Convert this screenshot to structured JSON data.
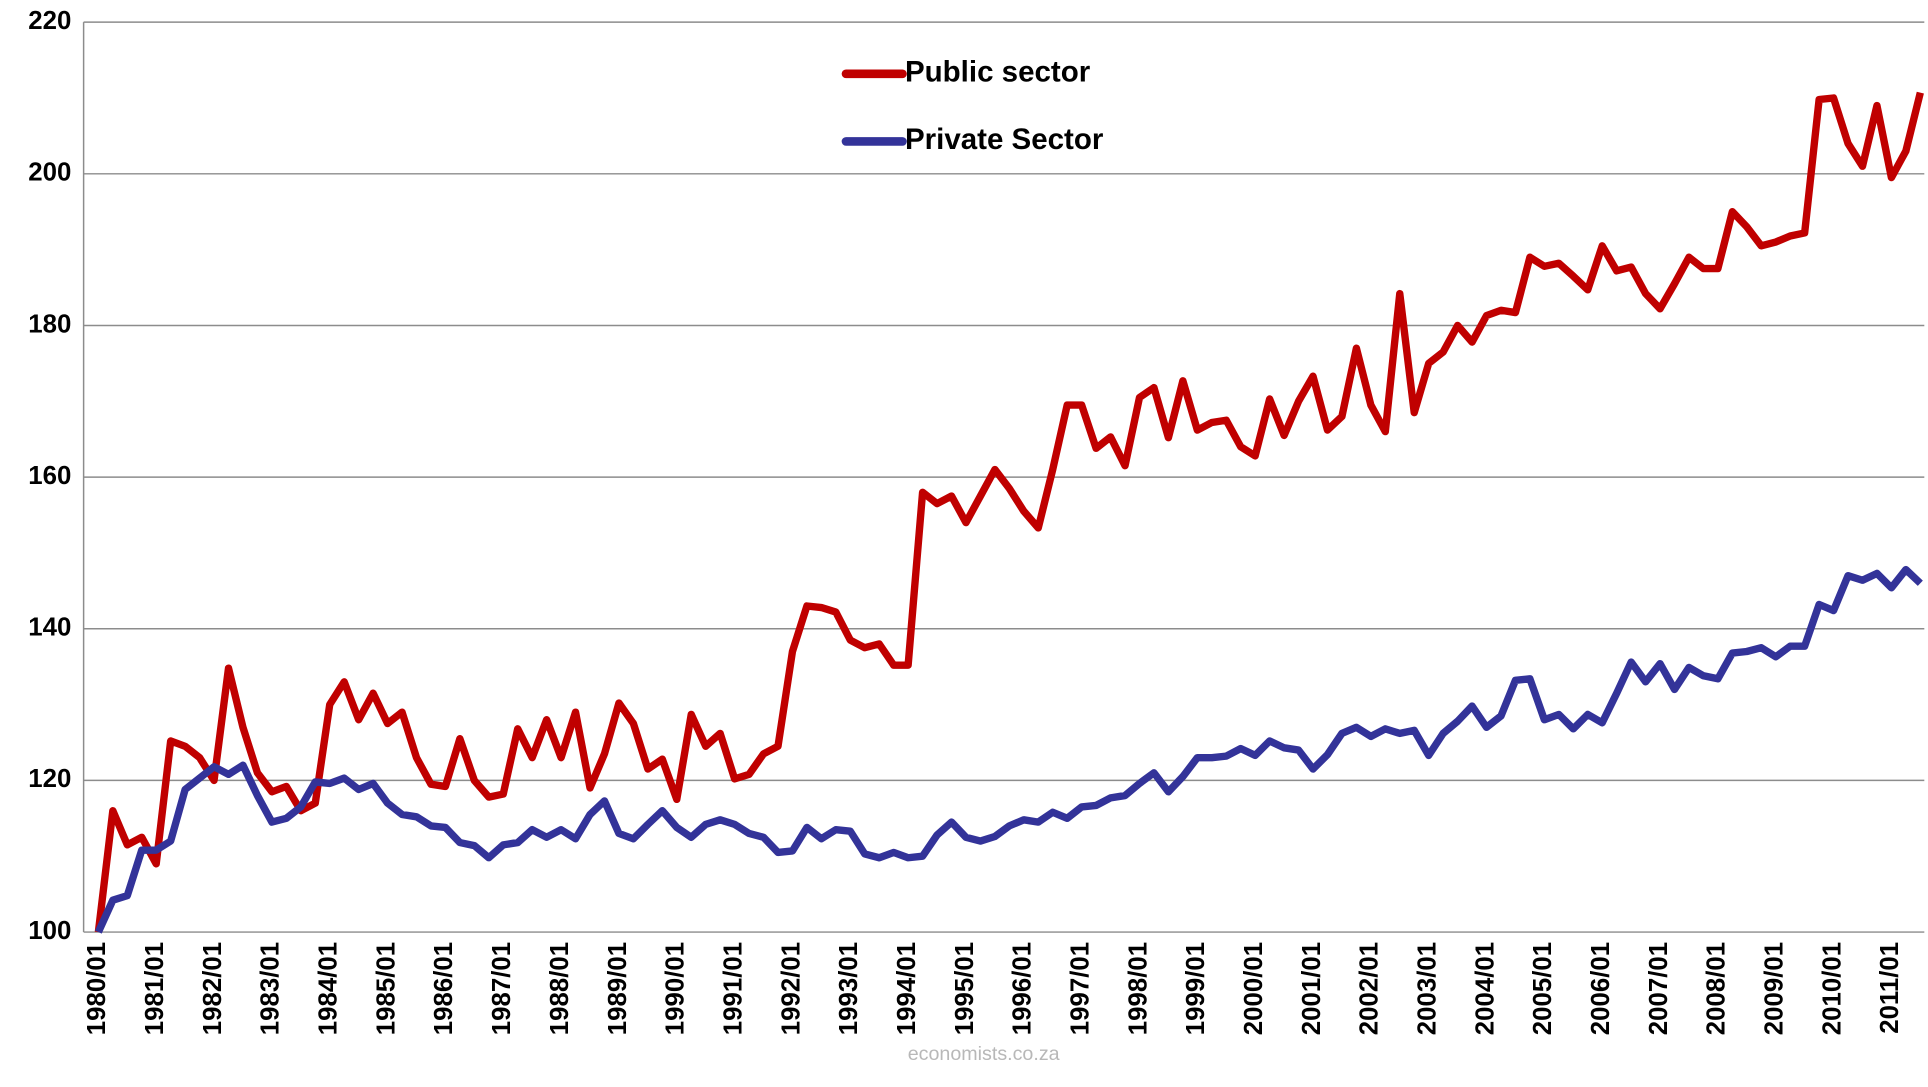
{
  "chart_data": {
    "type": "line",
    "categories": [
      "1980/01",
      null,
      null,
      null,
      "1981/01",
      null,
      null,
      null,
      "1982/01",
      null,
      null,
      null,
      "1983/01",
      null,
      null,
      null,
      "1984/01",
      null,
      null,
      null,
      "1985/01",
      null,
      null,
      null,
      "1986/01",
      null,
      null,
      null,
      "1987/01",
      null,
      null,
      null,
      "1988/01",
      null,
      null,
      null,
      "1989/01",
      null,
      null,
      null,
      "1990/01",
      null,
      null,
      null,
      "1991/01",
      null,
      null,
      null,
      "1992/01",
      null,
      null,
      null,
      "1993/01",
      null,
      null,
      null,
      "1994/01",
      null,
      null,
      null,
      "1995/01",
      null,
      null,
      null,
      "1996/01",
      null,
      null,
      null,
      "1997/01",
      null,
      null,
      null,
      "1998/01",
      null,
      null,
      null,
      "1999/01",
      null,
      null,
      null,
      "2000/01",
      null,
      null,
      null,
      "2001/01",
      null,
      null,
      null,
      "2002/01",
      null,
      null,
      null,
      "2003/01",
      null,
      null,
      null,
      "2004/01",
      null,
      null,
      null,
      "2005/01",
      null,
      null,
      null,
      "2006/01",
      null,
      null,
      null,
      "2007/01",
      null,
      null,
      null,
      "2008/01",
      null,
      null,
      null,
      "2009/01",
      null,
      null,
      null,
      "2010/01",
      null,
      null,
      null,
      "2011/01",
      null,
      null
    ],
    "series": [
      {
        "name": "Public sector",
        "color": "#c00000",
        "values": [
          100,
          116,
          111.5,
          112.5,
          109,
          125.2,
          124.5,
          123,
          120,
          134.8,
          127,
          121,
          118.5,
          119.2,
          116,
          117,
          130,
          133,
          128,
          131.5,
          127.5,
          129,
          123,
          119.5,
          119.2,
          125.5,
          120,
          117.8,
          118.2,
          126.8,
          123,
          128,
          123,
          129,
          119,
          123.5,
          130.2,
          127.5,
          121.5,
          122.8,
          117.5,
          128.7,
          124.5,
          126.2,
          120.2,
          120.8,
          123.5,
          124.5,
          137,
          143,
          142.8,
          142.2,
          138.5,
          137.5,
          138,
          135.2,
          135.2,
          158,
          156.5,
          157.5,
          154,
          157.5,
          161,
          158.5,
          155.5,
          153.3,
          161,
          169.5,
          169.5,
          163.8,
          165.3,
          161.5,
          170.5,
          171.8,
          165.2,
          172.7,
          166.2,
          167.2,
          167.5,
          164,
          162.8,
          170.3,
          165.5,
          170,
          173.3,
          166.2,
          168,
          177,
          169.5,
          166,
          184.2,
          168.5,
          175,
          176.5,
          180,
          177.8,
          181.3,
          182,
          181.7,
          189,
          187.8,
          188.2,
          186.5,
          184.7,
          190.5,
          187.2,
          187.7,
          184.2,
          182.2,
          185.5,
          189,
          187.5,
          187.5,
          195,
          193,
          190.5,
          191,
          191.8,
          192.2,
          209.8,
          210,
          204,
          201,
          209,
          199.5,
          203,
          210.7
        ]
      },
      {
        "name": "Private Sector",
        "color": "#333399",
        "values": [
          100,
          104.2,
          104.8,
          110.8,
          110.8,
          112,
          118.8,
          120.3,
          121.8,
          120.8,
          122,
          118,
          114.5,
          115,
          116.5,
          119.8,
          119.6,
          120.3,
          118.8,
          119.6,
          117,
          115.5,
          115.2,
          114,
          113.8,
          111.8,
          111.4,
          109.8,
          111.5,
          111.8,
          113.5,
          112.5,
          113.5,
          112.3,
          115.5,
          117.3,
          113,
          112.3,
          114.2,
          116,
          113.8,
          112.5,
          114.2,
          114.8,
          114.2,
          113,
          112.5,
          110.5,
          110.7,
          113.8,
          112.3,
          113.5,
          113.3,
          110.3,
          109.8,
          110.5,
          109.8,
          110,
          112.8,
          114.5,
          112.5,
          112,
          112.6,
          114,
          114.8,
          114.5,
          115.8,
          115,
          116.5,
          116.7,
          117.7,
          118,
          119.6,
          121,
          118.5,
          120.5,
          123,
          123,
          123.2,
          124.2,
          123.3,
          125.2,
          124.3,
          124,
          121.5,
          123.4,
          126.2,
          127,
          125.8,
          126.8,
          126.2,
          126.6,
          123.3,
          126.2,
          127.8,
          129.8,
          127,
          128.5,
          133.2,
          133.4,
          128,
          128.7,
          126.8,
          128.7,
          127.6,
          131.5,
          135.6,
          133,
          135.4,
          132,
          134.9,
          133.8,
          133.4,
          136.8,
          137,
          137.5,
          136.3,
          137.7,
          137.7,
          143.2,
          142.4,
          147,
          146.4,
          147.3,
          145.4,
          147.8,
          146
        ]
      }
    ],
    "ylim": [
      100,
      220
    ],
    "yticks": [
      100,
      120,
      140,
      160,
      180,
      200,
      220
    ],
    "grid": true,
    "legend": "top",
    "watermark": "economists.co.za"
  }
}
